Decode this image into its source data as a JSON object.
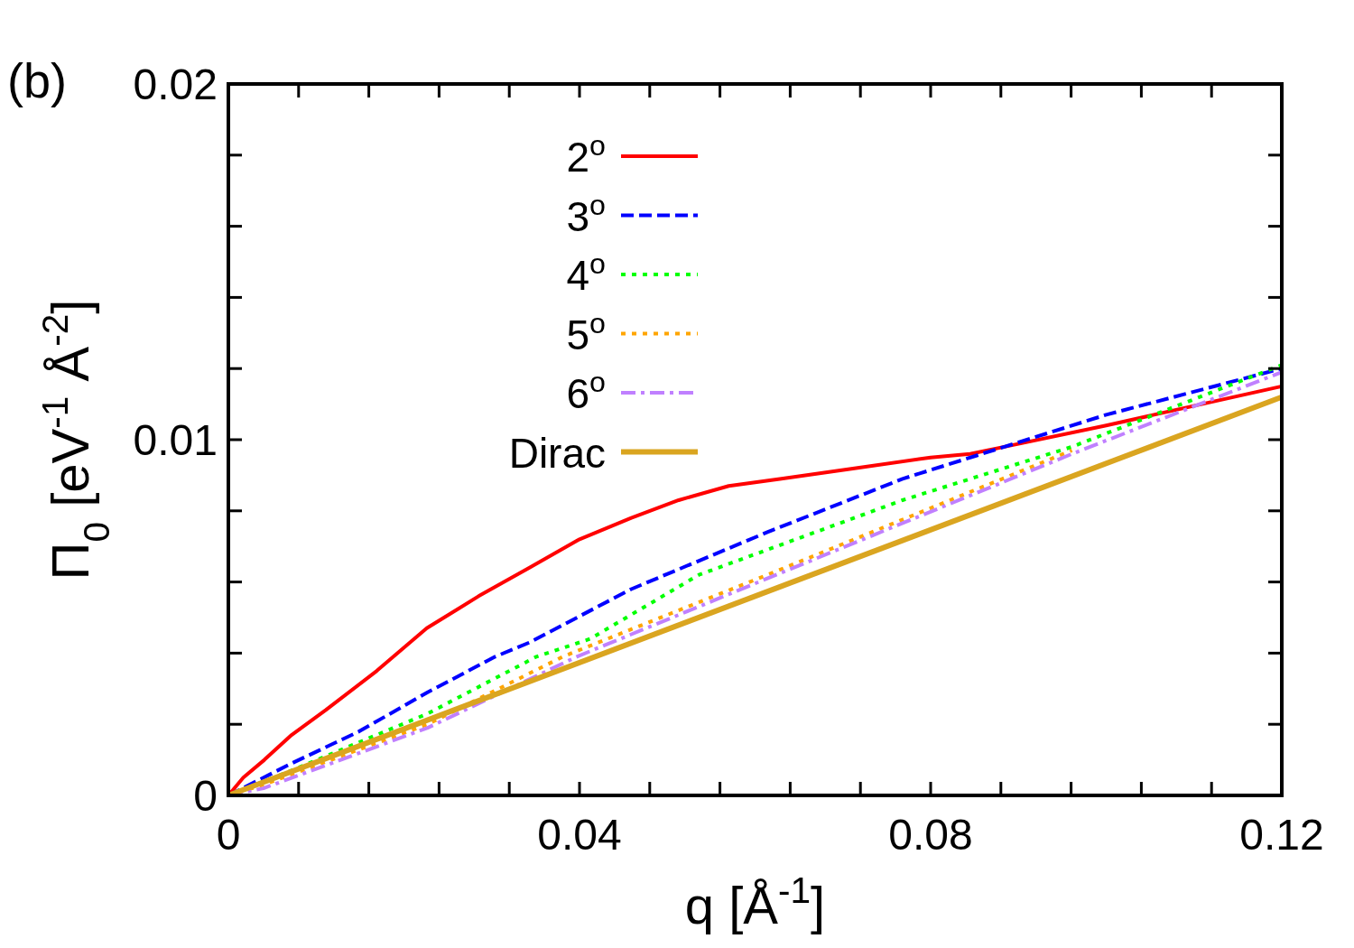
{
  "chart_data": {
    "type": "line",
    "title": "(b)",
    "xlabel": "q [Å$^{-1}$]",
    "ylabel": "Π$_{0}$  [eV$^{-1}$ Å$^{-2}$]",
    "xlim": [
      0,
      0.12
    ],
    "ylim": [
      0,
      0.02
    ],
    "xticks": [
      0,
      {
        "value": 0.008,
        "label": null
      },
      {
        "value": 0.016,
        "label": null
      },
      {
        "value": 0.024,
        "label": null
      },
      {
        "value": 0.032,
        "label": null
      },
      0.04,
      {
        "value": 0.048,
        "label": null
      },
      {
        "value": 0.056,
        "label": null
      },
      {
        "value": 0.064,
        "label": null
      },
      {
        "value": 0.072,
        "label": null
      },
      0.08,
      {
        "value": 0.088,
        "label": null
      },
      {
        "value": 0.096,
        "label": null
      },
      {
        "value": 0.104,
        "label": null
      },
      {
        "value": 0.112,
        "label": null
      },
      0.12
    ],
    "yticks": [
      0,
      {
        "value": 0.002,
        "label": null
      },
      {
        "value": 0.004,
        "label": null
      },
      {
        "value": 0.006,
        "label": null
      },
      {
        "value": 0.008,
        "label": null
      },
      0.01,
      {
        "value": 0.012,
        "label": null
      },
      {
        "value": 0.014,
        "label": null
      },
      {
        "value": 0.016,
        "label": null
      },
      {
        "value": 0.018,
        "label": null
      },
      0.02
    ],
    "grid": false,
    "legend": "top left",
    "series": [
      {
        "name": "2$^{o}$",
        "color": "#ff0000",
        "line_style": "solid",
        "x": [
          0,
          0.0017,
          0.0041,
          0.0072,
          0.0111,
          0.0169,
          0.0226,
          0.0285,
          0.0343,
          0.04,
          0.0459,
          0.0513,
          0.057,
          0.063,
          0.0715,
          0.08,
          0.0845,
          0.0884,
          0.1,
          0.12
        ],
        "values": [
          0,
          0.0005,
          0.001,
          0.0017,
          0.0024,
          0.0035,
          0.0047,
          0.0056,
          0.0064,
          0.0072,
          0.0078,
          0.0083,
          0.0087,
          0.0089,
          0.0092,
          0.0095,
          0.0096,
          0.0098,
          0.0104,
          0.0115
        ]
      },
      {
        "name": "3$^{o}$",
        "color": "#0000ff",
        "line_style": "dashed",
        "x": [
          0,
          0.0072,
          0.0149,
          0.0227,
          0.0304,
          0.0343,
          0.0459,
          0.0614,
          0.0768,
          0.0884,
          0.1,
          0.12
        ],
        "values": [
          0,
          0.0009,
          0.0018,
          0.0029,
          0.0039,
          0.0043,
          0.0058,
          0.0074,
          0.0089,
          0.0098,
          0.0107,
          0.012
        ]
      },
      {
        "name": "4$^{o}$",
        "color": "#00ff00",
        "line_style": "dotted",
        "x": [
          0,
          0.0072,
          0.0227,
          0.0351,
          0.0412,
          0.0536,
          0.0768,
          0.0961,
          0.12
        ],
        "values": [
          0,
          0.0007,
          0.0023,
          0.0039,
          0.0044,
          0.0062,
          0.0083,
          0.0098,
          0.0121
        ]
      },
      {
        "name": "5$^{o}$",
        "color": "#ffa500",
        "line_style": "dotted",
        "x": [
          0,
          0.004,
          0.0227,
          0.0381,
          0.0614,
          0.0961
        ],
        "values": [
          0,
          0.0003,
          0.002,
          0.0039,
          0.0062,
          0.0097
        ]
      },
      {
        "name": "6$^{o}$",
        "color": "#c080ff",
        "line_style": "dashdot",
        "x": [
          0,
          0.004,
          0.0227,
          0.0397,
          0.0614,
          0.0961,
          0.12
        ],
        "values": [
          0,
          0.0002,
          0.0019,
          0.0039,
          0.0061,
          0.0096,
          0.0119
        ]
      },
      {
        "name": "Dirac",
        "color": "#daa520",
        "line_style": "solid",
        "x": [
          0,
          0.12
        ],
        "values": [
          0,
          0.0112
        ]
      }
    ]
  }
}
